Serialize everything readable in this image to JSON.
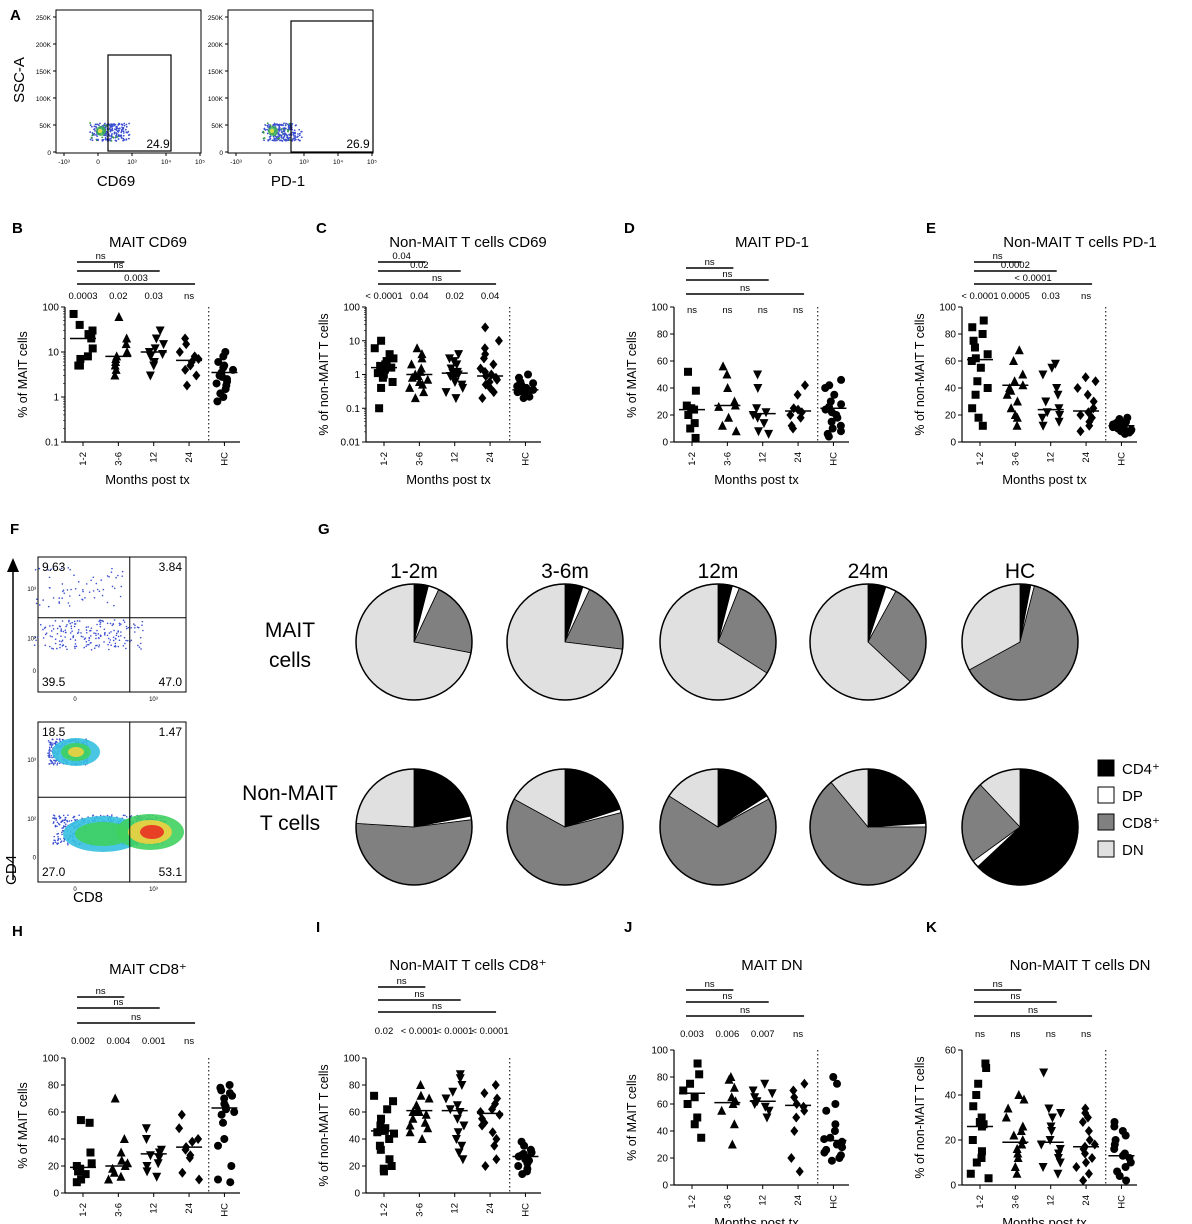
{
  "figure": {
    "panel_letters": [
      "A",
      "B",
      "C",
      "D",
      "E",
      "F",
      "G",
      "H",
      "I",
      "J",
      "K"
    ],
    "categories": [
      "1-2",
      "3-6",
      "12",
      "24",
      "HC"
    ],
    "xlabel": "Months post tx"
  },
  "flow": {
    "a_left": {
      "ylabel": "SSC-A",
      "xlabel": "CD69",
      "gate_value": "24.9",
      "yticks": [
        "250K",
        "200K",
        "150K",
        "100K",
        "50K",
        "0"
      ],
      "xticks": [
        "-10³",
        "0",
        "10³",
        "10⁴",
        "10⁵"
      ]
    },
    "a_right": {
      "xlabel": "PD-1",
      "gate_value": "26.9",
      "yticks": [
        "250K",
        "200K",
        "150K",
        "100K",
        "50K",
        "0"
      ],
      "xticks": [
        "-10³",
        "0",
        "10³",
        "10⁴",
        "10⁵"
      ]
    },
    "f_top": {
      "quadrants": [
        "9.63",
        "3.84",
        "39.5",
        "47.0"
      ],
      "yticks": [
        "10³",
        "10²",
        "0"
      ],
      "xticks": [
        "0",
        "10³"
      ]
    },
    "f_bottom": {
      "quadrants": [
        "18.5",
        "1.47",
        "27.0",
        "53.1"
      ],
      "yticks": [
        "10³",
        "10²",
        "0"
      ],
      "xticks": [
        "0",
        "10³"
      ]
    },
    "f_ylabel": "CD4",
    "f_xlabel": "CD8"
  },
  "chart_data": [
    {
      "id": "B",
      "type": "scatter",
      "title": "MAIT CD69",
      "ylabel": "% of MAIT cells",
      "xlabel": "Months post tx",
      "categories": [
        "1-2",
        "3-6",
        "12",
        "24",
        "HC"
      ],
      "yscale": "log",
      "ylim": [
        0.1,
        100
      ],
      "yticks": [
        0.1,
        1,
        10,
        100
      ],
      "ytick_labels": [
        "0.1",
        "1",
        "10",
        "100"
      ],
      "markers": [
        "square",
        "triangle",
        "triangle-down",
        "diamond",
        "circle"
      ],
      "series": [
        [
          70,
          40,
          30,
          25,
          20,
          12,
          8,
          7,
          5,
          5
        ],
        [
          60,
          20,
          15,
          10,
          8,
          7,
          6,
          5,
          4,
          3
        ],
        [
          30,
          20,
          15,
          12,
          10,
          9,
          8,
          6,
          5,
          3
        ],
        [
          20,
          15,
          10,
          8,
          7,
          6,
          5,
          4,
          3,
          1.8
        ],
        [
          10,
          8,
          6,
          5,
          4.5,
          4,
          3.5,
          3,
          2.8,
          2.5,
          2.2,
          2,
          1.8,
          1.5,
          1.2,
          1,
          0.8
        ]
      ],
      "medians": [
        20,
        8,
        10,
        6.5,
        3.5
      ],
      "pvalues": [
        "0.0003",
        "0.02",
        "0.03",
        "ns"
      ],
      "comparisons": [
        {
          "label": "ns",
          "to": 1
        },
        {
          "label": "ns",
          "to": 2
        },
        {
          "label": "0.003",
          "to": 3
        }
      ]
    },
    {
      "id": "C",
      "type": "scatter",
      "title": "Non-MAIT T cells CD69",
      "ylabel": "% of non-MAIT T cells",
      "xlabel": "Months post tx",
      "categories": [
        "1-2",
        "3-6",
        "12",
        "24",
        "HC"
      ],
      "yscale": "log",
      "ylim": [
        0.01,
        100
      ],
      "yticks": [
        0.01,
        0.1,
        1,
        10,
        100
      ],
      "ytick_labels": [
        "0.01",
        "0.1",
        "1",
        "10",
        "100"
      ],
      "markers": [
        "square",
        "triangle",
        "triangle-down",
        "diamond",
        "circle"
      ],
      "series": [
        [
          10,
          6,
          4,
          3,
          2.5,
          2,
          1.8,
          1.6,
          1.5,
          1.4,
          1.2,
          1.1,
          1,
          0.8,
          0.6,
          0.4,
          0.1
        ],
        [
          6,
          4,
          3,
          2,
          1.5,
          1.2,
          1,
          0.9,
          0.8,
          0.7,
          0.6,
          0.5,
          0.4,
          0.3,
          0.2
        ],
        [
          4,
          3,
          2.5,
          2,
          1.5,
          1.2,
          1.1,
          1,
          0.9,
          0.8,
          0.6,
          0.5,
          0.4,
          0.3,
          0.2
        ],
        [
          25,
          10,
          6,
          4,
          3,
          2,
          1.5,
          1.2,
          1,
          0.9,
          0.8,
          0.7,
          0.6,
          0.5,
          0.4,
          0.3,
          0.2
        ],
        [
          1,
          0.8,
          0.6,
          0.55,
          0.5,
          0.45,
          0.4,
          0.38,
          0.35,
          0.33,
          0.3,
          0.28,
          0.25,
          0.22,
          0.2
        ]
      ],
      "medians": [
        1.6,
        1,
        1.1,
        0.9,
        0.35
      ],
      "pvalues": [
        "< 0.0001",
        "0.04",
        "0.02",
        "0.04"
      ],
      "comparisons": [
        {
          "label": "0.04",
          "to": 1
        },
        {
          "label": "0.02",
          "to": 2
        },
        {
          "label": "ns",
          "to": 3
        }
      ]
    },
    {
      "id": "D",
      "type": "scatter",
      "title": "MAIT PD-1",
      "ylabel": "% of MAIT cells",
      "xlabel": "Months post tx",
      "categories": [
        "1-2",
        "3-6",
        "12",
        "24",
        "HC"
      ],
      "yscale": "linear",
      "ylim": [
        0,
        100
      ],
      "yticks": [
        0,
        20,
        40,
        60,
        80,
        100
      ],
      "ytick_labels": [
        "0",
        "20",
        "40",
        "60",
        "80",
        "100"
      ],
      "markers": [
        "square",
        "triangle",
        "triangle-down",
        "diamond",
        "circle"
      ],
      "series": [
        [
          52,
          38,
          27,
          25,
          24,
          20,
          14,
          10,
          3
        ],
        [
          56,
          50,
          40,
          30,
          27,
          26,
          18,
          12,
          8
        ],
        [
          50,
          40,
          25,
          22,
          20,
          18,
          14,
          8,
          6
        ],
        [
          42,
          35,
          25,
          24,
          22,
          20,
          18,
          12,
          10
        ],
        [
          46,
          42,
          40,
          35,
          30,
          28,
          26,
          24,
          22,
          20,
          18,
          15,
          12,
          10,
          8,
          6,
          4
        ]
      ],
      "medians": [
        24,
        27,
        21,
        23,
        25
      ],
      "pvalues": [
        "ns",
        "ns",
        "ns",
        "ns"
      ],
      "comparisons": [
        {
          "label": "ns",
          "to": 1
        },
        {
          "label": "ns",
          "to": 2
        },
        {
          "label": "ns",
          "to": 3
        }
      ]
    },
    {
      "id": "E",
      "type": "scatter",
      "title": "Non-MAIT T cells PD-1",
      "ylabel": "% of non-MAIT T cells",
      "xlabel": "Months post tx",
      "categories": [
        "1-2",
        "3-6",
        "12",
        "24",
        "HC"
      ],
      "yscale": "linear",
      "ylim": [
        0,
        100
      ],
      "yticks": [
        0,
        20,
        40,
        60,
        80,
        100
      ],
      "ytick_labels": [
        "0",
        "20",
        "40",
        "60",
        "80",
        "100"
      ],
      "markers": [
        "square",
        "triangle",
        "triangle-down",
        "diamond",
        "circle"
      ],
      "series": [
        [
          90,
          85,
          80,
          75,
          70,
          65,
          62,
          60,
          55,
          45,
          40,
          35,
          25,
          18,
          12
        ],
        [
          68,
          60,
          50,
          45,
          42,
          40,
          38,
          35,
          30,
          25,
          20,
          18,
          12
        ],
        [
          58,
          55,
          50,
          40,
          35,
          30,
          25,
          22,
          20,
          18,
          15,
          12
        ],
        [
          48,
          45,
          40,
          35,
          30,
          25,
          22,
          20,
          18,
          15,
          12,
          8
        ],
        [
          18,
          17,
          16,
          15,
          14,
          13,
          12,
          12,
          11,
          10,
          10,
          9,
          9,
          8,
          8,
          7,
          6
        ]
      ],
      "medians": [
        61,
        42,
        24,
        23,
        12
      ],
      "pvalues": [
        "< 0.0001",
        "0.0005",
        "0.03",
        "ns"
      ],
      "comparisons": [
        {
          "label": "ns",
          "to": 1
        },
        {
          "label": "0.0002",
          "to": 2
        },
        {
          "label": "< 0.0001",
          "to": 3
        }
      ]
    },
    {
      "id": "G",
      "type": "pie",
      "columns": [
        "1-2m",
        "3-6m",
        "12m",
        "24m",
        "HC"
      ],
      "rows": [
        "MAIT cells",
        "Non-MAIT T cells"
      ],
      "legend": [
        {
          "label": "CD4⁺",
          "color": "#000000"
        },
        {
          "label": "DP",
          "color": "#ffffff"
        },
        {
          "label": "CD8⁺",
          "color": "#808080"
        },
        {
          "label": "DN",
          "color": "#e0e0e0"
        }
      ],
      "mait": [
        [
          4,
          3,
          21,
          72
        ],
        [
          5,
          2,
          20,
          73
        ],
        [
          4,
          2,
          28,
          66
        ],
        [
          5,
          3,
          29,
          63
        ],
        [
          3,
          1,
          63,
          33
        ]
      ],
      "nonmait": [
        [
          22,
          1,
          53,
          24
        ],
        [
          20,
          1,
          62,
          17
        ],
        [
          16,
          1,
          67,
          16
        ],
        [
          24,
          1,
          64,
          11
        ],
        [
          63,
          2,
          23,
          12
        ]
      ]
    },
    {
      "id": "H",
      "type": "scatter",
      "title": "MAIT CD8⁺",
      "ylabel": "% of MAIT cells",
      "xlabel": "Months post tx",
      "categories": [
        "1-2",
        "3-6",
        "12",
        "24",
        "HC"
      ],
      "yscale": "linear",
      "ylim": [
        0,
        100
      ],
      "yticks": [
        0,
        20,
        40,
        60,
        80,
        100
      ],
      "ytick_labels": [
        "0",
        "20",
        "40",
        "60",
        "80",
        "100"
      ],
      "markers": [
        "square",
        "triangle",
        "triangle-down",
        "diamond",
        "circle"
      ],
      "series": [
        [
          54,
          52,
          30,
          22,
          20,
          18,
          16,
          14,
          10,
          8
        ],
        [
          70,
          40,
          30,
          24,
          22,
          20,
          18,
          15,
          12,
          10
        ],
        [
          48,
          40,
          32,
          30,
          28,
          26,
          22,
          20,
          16,
          12
        ],
        [
          58,
          48,
          40,
          38,
          34,
          32,
          28,
          26,
          15,
          10
        ],
        [
          80,
          78,
          76,
          74,
          72,
          70,
          66,
          64,
          62,
          60,
          58,
          52,
          40,
          35,
          20,
          10,
          8
        ]
      ],
      "medians": [
        19,
        20,
        29,
        34,
        63
      ],
      "pvalues": [
        "0.002",
        "0.004",
        "0.001",
        "ns"
      ],
      "comparisons": [
        {
          "label": "ns",
          "to": 1
        },
        {
          "label": "ns",
          "to": 2
        },
        {
          "label": "ns",
          "to": 3
        }
      ]
    },
    {
      "id": "I",
      "type": "scatter",
      "title": "Non-MAIT T cells CD8⁺",
      "ylabel": "% of non-MAIT T cells",
      "xlabel": "Months post tx",
      "categories": [
        "1-2",
        "3-6",
        "12",
        "24",
        "HC"
      ],
      "yscale": "linear",
      "ylim": [
        0,
        100
      ],
      "yticks": [
        0,
        20,
        40,
        60,
        80,
        100
      ],
      "ytick_labels": [
        "0",
        "20",
        "40",
        "60",
        "80",
        "100"
      ],
      "markers": [
        "square",
        "triangle",
        "triangle-down",
        "diamond",
        "circle"
      ],
      "series": [
        [
          72,
          68,
          62,
          55,
          50,
          48,
          46,
          45,
          44,
          40,
          35,
          32,
          25,
          20,
          18,
          16
        ],
        [
          80,
          72,
          70,
          65,
          62,
          60,
          60,
          58,
          55,
          52,
          50,
          48,
          45,
          40
        ],
        [
          88,
          85,
          80,
          75,
          70,
          65,
          62,
          60,
          55,
          50,
          45,
          40,
          35,
          30,
          25
        ],
        [
          80,
          74,
          70,
          66,
          62,
          60,
          58,
          55,
          52,
          50,
          45,
          40,
          35,
          25,
          20
        ],
        [
          38,
          35,
          32,
          30,
          29,
          28,
          27,
          26,
          25,
          24,
          22,
          20,
          18,
          16,
          14
        ]
      ],
      "medians": [
        46,
        61,
        61,
        59,
        27
      ],
      "pvalues": [
        "0.02",
        "< 0.0001",
        "< 0.0001",
        "< 0.0001"
      ],
      "comparisons": [
        {
          "label": "ns",
          "to": 1
        },
        {
          "label": "ns",
          "to": 2
        },
        {
          "label": "ns",
          "to": 3
        }
      ]
    },
    {
      "id": "J",
      "type": "scatter",
      "title": "MAIT DN",
      "ylabel": "% of MAIT cells",
      "xlabel": "Months post tx",
      "categories": [
        "1-2",
        "3-6",
        "12",
        "24",
        "HC"
      ],
      "yscale": "linear",
      "ylim": [
        0,
        100
      ],
      "yticks": [
        0,
        20,
        40,
        60,
        80,
        100
      ],
      "ytick_labels": [
        "0",
        "20",
        "40",
        "60",
        "80",
        "100"
      ],
      "markers": [
        "square",
        "triangle",
        "triangle-down",
        "diamond",
        "circle"
      ],
      "series": [
        [
          90,
          82,
          75,
          70,
          65,
          60,
          50,
          45,
          35
        ],
        [
          80,
          78,
          72,
          65,
          62,
          60,
          55,
          45,
          30
        ],
        [
          75,
          70,
          68,
          65,
          62,
          60,
          58,
          55,
          50
        ],
        [
          75,
          70,
          65,
          60,
          58,
          55,
          50,
          40,
          20,
          10
        ],
        [
          80,
          75,
          60,
          55,
          45,
          40,
          35,
          34,
          32,
          30,
          28,
          26,
          24,
          22,
          20,
          18
        ]
      ],
      "medians": [
        68,
        61,
        62,
        59,
        33
      ],
      "pvalues": [
        "0.003",
        "0.006",
        "0.007",
        "ns"
      ],
      "comparisons": [
        {
          "label": "ns",
          "to": 1
        },
        {
          "label": "ns",
          "to": 2
        },
        {
          "label": "ns",
          "to": 3
        }
      ]
    },
    {
      "id": "K",
      "type": "scatter",
      "title": "Non-MAIT T cells DN",
      "ylabel": "% of non-MAIT T cells",
      "xlabel": "Months post tx",
      "categories": [
        "1-2",
        "3-6",
        "12",
        "24",
        "HC"
      ],
      "yscale": "linear",
      "ylim": [
        0,
        60
      ],
      "yticks": [
        0,
        20,
        40,
        60
      ],
      "ytick_labels": [
        "0",
        "20",
        "40",
        "60"
      ],
      "markers": [
        "square",
        "triangle",
        "triangle-down",
        "diamond",
        "circle"
      ],
      "series": [
        [
          54,
          52,
          45,
          40,
          35,
          30,
          28,
          27,
          26,
          20,
          15,
          12,
          10,
          5,
          3
        ],
        [
          40,
          38,
          34,
          30,
          26,
          24,
          22,
          20,
          18,
          16,
          14,
          12,
          8,
          5
        ],
        [
          50,
          34,
          32,
          30,
          26,
          24,
          20,
          18,
          16,
          14,
          12,
          10,
          8,
          5
        ],
        [
          34,
          32,
          30,
          28,
          24,
          20,
          18,
          17,
          16,
          14,
          12,
          10,
          8,
          5,
          2
        ],
        [
          28,
          26,
          24,
          22,
          20,
          18,
          16,
          14,
          13,
          12,
          10,
          8,
          6,
          4,
          2
        ]
      ],
      "medians": [
        26,
        19,
        19,
        17,
        13
      ],
      "pvalues": [
        "ns",
        "ns",
        "ns",
        "ns"
      ],
      "comparisons": [
        {
          "label": "ns",
          "to": 1
        },
        {
          "label": "ns",
          "to": 2
        },
        {
          "label": "ns",
          "to": 3
        }
      ]
    }
  ]
}
